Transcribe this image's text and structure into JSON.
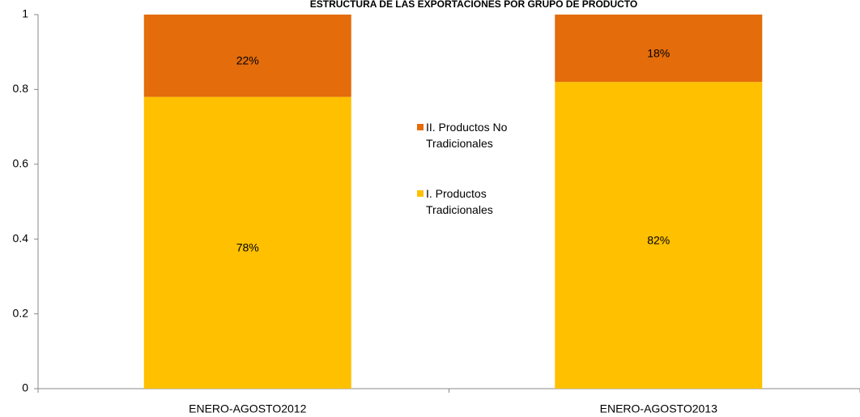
{
  "chart_data": {
    "type": "stacked-bar",
    "title": "ESTRUCTURA DE LAS EXPORTACIONES POR GRUPO DE PRODUCTO",
    "categories": [
      "ENERO-AGOSTO2012",
      "ENERO-AGOSTO2013"
    ],
    "series": [
      {
        "name": "I. Productos Tradicionales",
        "color": "#ffc000",
        "values": [
          0.78,
          0.82
        ],
        "value_labels": [
          "78%",
          "82%"
        ]
      },
      {
        "name": "II. Productos No Tradicionales",
        "color": "#e46c0a",
        "values": [
          0.22,
          0.18
        ],
        "value_labels": [
          "22%",
          "18%"
        ]
      }
    ],
    "ylim": [
      0,
      1
    ],
    "yticks": [
      0,
      0.2,
      0.4,
      0.6,
      0.8,
      1
    ],
    "grid": false
  }
}
